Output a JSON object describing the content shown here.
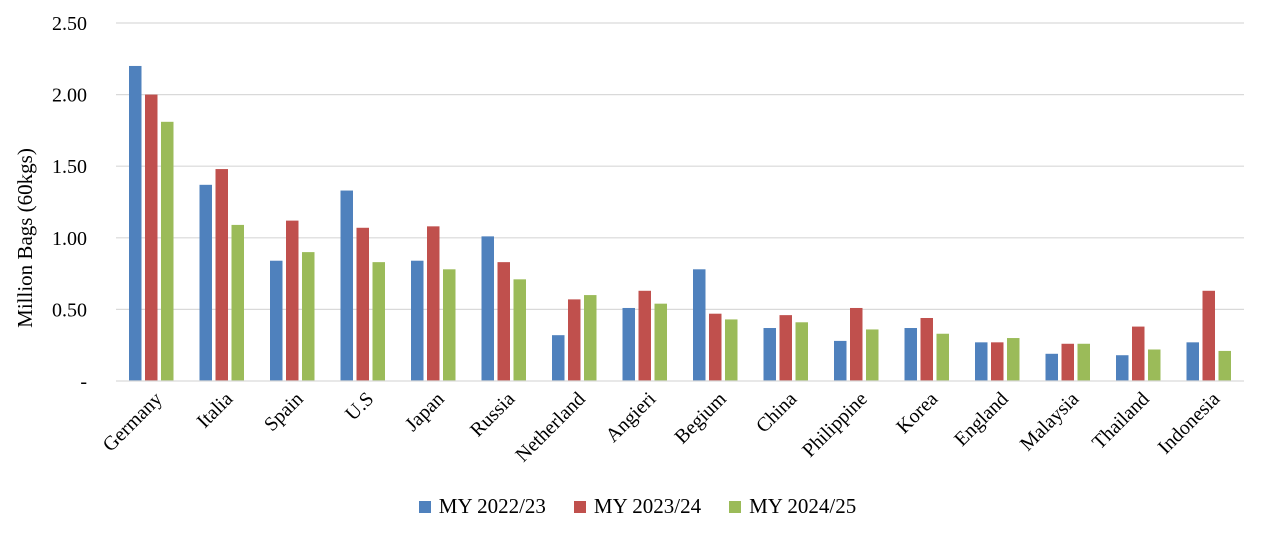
{
  "chart_data": {
    "type": "bar",
    "title": "",
    "xlabel": "",
    "ylabel": "Million Bags (60kgs)",
    "ylim": [
      0,
      2.5
    ],
    "yticks": [
      0,
      0.5,
      1.0,
      1.5,
      2.0,
      2.5
    ],
    "ytick_labels": [
      "-",
      "0.50",
      "1.00",
      "1.50",
      "2.00",
      "2.50"
    ],
    "grid": true,
    "legend_position": "bottom",
    "categories": [
      "Germany",
      "Italia",
      "Spain",
      "U.S",
      "Japan",
      "Russia",
      "Netherland",
      "Angieri",
      "Begium",
      "China",
      "Philippine",
      "Korea",
      "England",
      "Malaysia",
      "Thailand",
      "Indonesia"
    ],
    "series": [
      {
        "name": "MY 2022/23",
        "color": "#4f81bd",
        "values": [
          2.2,
          1.37,
          0.84,
          1.33,
          0.84,
          1.01,
          0.32,
          0.51,
          0.78,
          0.37,
          0.28,
          0.37,
          0.27,
          0.19,
          0.18,
          0.27
        ]
      },
      {
        "name": "MY 2023/24",
        "color": "#c0504d",
        "values": [
          2.0,
          1.48,
          1.12,
          1.07,
          1.08,
          0.83,
          0.57,
          0.63,
          0.47,
          0.46,
          0.51,
          0.44,
          0.27,
          0.26,
          0.38,
          0.63
        ]
      },
      {
        "name": "MY 2024/25",
        "color": "#9bbb59",
        "values": [
          1.81,
          1.09,
          0.9,
          0.83,
          0.78,
          0.71,
          0.6,
          0.54,
          0.43,
          0.41,
          0.36,
          0.33,
          0.3,
          0.26,
          0.22,
          0.21
        ]
      }
    ]
  }
}
